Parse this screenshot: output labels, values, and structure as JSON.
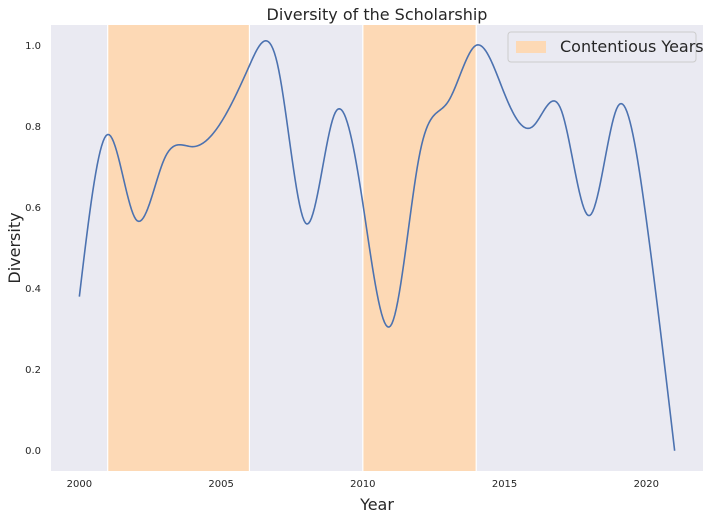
{
  "chart_data": {
    "type": "line",
    "title": "Diversity of the Scholarship",
    "xlabel": "Year",
    "ylabel": "Diversity",
    "xlim": [
      1999.0,
      2022.0
    ],
    "ylim": [
      -0.05,
      1.05
    ],
    "xticks": [
      2000,
      2005,
      2010,
      2015,
      2020
    ],
    "yticks": [
      0.0,
      0.2,
      0.4,
      0.6,
      0.8,
      1.0
    ],
    "x_tick_labels": [
      "2000",
      "2005",
      "2010",
      "2015",
      "2020"
    ],
    "y_tick_labels": [
      "0.0",
      "0.2",
      "0.4",
      "0.6",
      "0.8",
      "1.0"
    ],
    "grid": false,
    "legend_position": "top-right",
    "series": [
      {
        "color": "#4c72b0",
        "x": [
          2000,
          2001,
          2002,
          2003,
          2004,
          2005,
          2006,
          2007,
          2008,
          2009,
          2010,
          2011,
          2012,
          2013,
          2014,
          2015,
          2016,
          2017,
          2018,
          2019,
          2020,
          2021
        ],
        "y": [
          0.38,
          0.78,
          0.57,
          0.72,
          0.75,
          0.81,
          0.95,
          0.95,
          0.56,
          0.83,
          0.61,
          0.31,
          0.73,
          0.86,
          1.0,
          0.88,
          0.8,
          0.84,
          0.58,
          0.85,
          0.57,
          0.0
        ]
      }
    ],
    "spans": [
      {
        "name": "Contentious Years",
        "start": 2001,
        "end": 2006,
        "color": "#fdd9b5"
      },
      {
        "name": "Contentious Years",
        "start": 2010,
        "end": 2014,
        "color": "#fdd9b5"
      }
    ],
    "legend": [
      {
        "label": "Contentious Years",
        "color": "#fdd9b5",
        "kind": "patch"
      }
    ],
    "colors": {
      "plot_background": "#eaeaf2",
      "span_edge": "#ffffff",
      "text": "#262626"
    }
  }
}
